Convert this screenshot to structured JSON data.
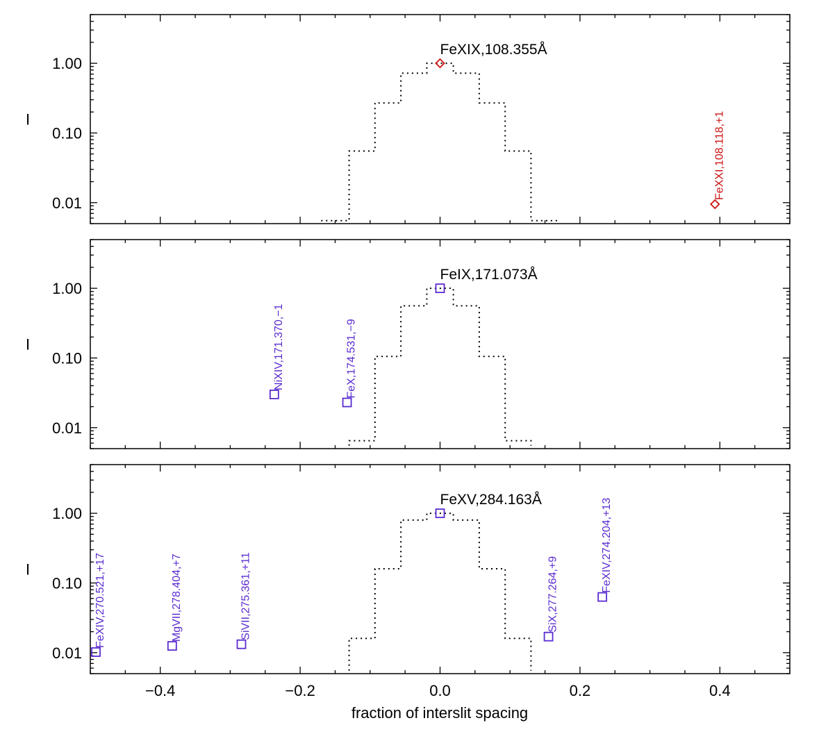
{
  "chart_data": {
    "type": "line",
    "xlabel": "fraction of interslit spacing",
    "ylabel": "I",
    "xlim": [
      -0.5,
      0.5
    ],
    "ylim": [
      0.005,
      5
    ],
    "yscale": "log",
    "x_ticks": [
      -0.4,
      -0.2,
      0.0,
      0.2,
      0.4
    ],
    "x_tick_labels": [
      "−0.4",
      "−0.2",
      "0.0",
      "0.2",
      "0.4"
    ],
    "y_ticks": [
      1.0,
      0.1,
      0.01
    ],
    "y_tick_labels": [
      "1.00",
      "0.10",
      "0.01"
    ],
    "colors": {
      "frame": "#000000",
      "profile": "#000000",
      "red": "#cc1111",
      "purple": "#5a2bd0"
    },
    "panels": [
      {
        "id": "panel-1",
        "main_label": "FeXIX,108.355Å",
        "main_marker": "diamond",
        "main_point": [
          0.0,
          1.0
        ],
        "profile": [
          [
            -0.17,
            0.0055
          ],
          [
            -0.13,
            0.0055
          ],
          [
            -0.13,
            0.055
          ],
          [
            -0.093,
            0.055
          ],
          [
            -0.093,
            0.27
          ],
          [
            -0.056,
            0.27
          ],
          [
            -0.056,
            0.72
          ],
          [
            -0.019,
            0.72
          ],
          [
            -0.019,
            1.0
          ],
          [
            0.019,
            1.0
          ],
          [
            0.019,
            0.72
          ],
          [
            0.056,
            0.72
          ],
          [
            0.056,
            0.27
          ],
          [
            0.093,
            0.27
          ],
          [
            0.093,
            0.055
          ],
          [
            0.13,
            0.055
          ],
          [
            0.13,
            0.0055
          ],
          [
            0.17,
            0.0055
          ]
        ],
        "lines": [
          {
            "label": "FeXXI,108.118,+1",
            "x": 0.393,
            "y": 0.0095,
            "marker": "diamond",
            "color": "red"
          }
        ]
      },
      {
        "id": "panel-2",
        "main_label": "FeIX,171.073Å",
        "main_marker": "square",
        "main_point": [
          0.0,
          1.0
        ],
        "profile": [
          [
            -0.13,
            0.0055
          ],
          [
            -0.13,
            0.0065
          ],
          [
            -0.093,
            0.0065
          ],
          [
            -0.093,
            0.105
          ],
          [
            -0.056,
            0.105
          ],
          [
            -0.056,
            0.56
          ],
          [
            -0.019,
            0.56
          ],
          [
            -0.019,
            1.0
          ],
          [
            0.019,
            1.0
          ],
          [
            0.019,
            0.56
          ],
          [
            0.056,
            0.56
          ],
          [
            0.056,
            0.105
          ],
          [
            0.093,
            0.105
          ],
          [
            0.093,
            0.0065
          ],
          [
            0.13,
            0.0065
          ],
          [
            0.13,
            0.0055
          ]
        ],
        "lines": [
          {
            "label": "NiXIV,171.370,−1",
            "x": -0.237,
            "y": 0.03,
            "marker": "square",
            "color": "purple"
          },
          {
            "label": "FeX,174.531,−9",
            "x": -0.133,
            "y": 0.023,
            "marker": "square",
            "color": "purple"
          }
        ]
      },
      {
        "id": "panel-3",
        "main_label": "FeXV,284.163Å",
        "main_marker": "square",
        "main_point": [
          0.0,
          1.0
        ],
        "profile": [
          [
            -0.13,
            0.0055
          ],
          [
            -0.13,
            0.016
          ],
          [
            -0.093,
            0.016
          ],
          [
            -0.093,
            0.16
          ],
          [
            -0.056,
            0.16
          ],
          [
            -0.056,
            0.8
          ],
          [
            -0.019,
            0.8
          ],
          [
            -0.019,
            1.0
          ],
          [
            0.019,
            1.0
          ],
          [
            0.019,
            0.8
          ],
          [
            0.056,
            0.8
          ],
          [
            0.056,
            0.16
          ],
          [
            0.093,
            0.16
          ],
          [
            0.093,
            0.016
          ],
          [
            0.13,
            0.016
          ],
          [
            0.13,
            0.0055
          ]
        ],
        "lines": [
          {
            "label": "FeXIV,270.521,+17",
            "x": -0.492,
            "y": 0.0102,
            "marker": "square",
            "color": "purple"
          },
          {
            "label": "MgVII,278.404,+7",
            "x": -0.383,
            "y": 0.0125,
            "marker": "square",
            "color": "purple"
          },
          {
            "label": "SiVII,275.361,+11",
            "x": -0.284,
            "y": 0.0132,
            "marker": "square",
            "color": "purple"
          },
          {
            "label": "SiX,277.264,+9",
            "x": 0.155,
            "y": 0.017,
            "marker": "square",
            "color": "purple"
          },
          {
            "label": "FeXIV,274.204,+13",
            "x": 0.232,
            "y": 0.063,
            "marker": "square",
            "color": "purple"
          }
        ]
      }
    ]
  }
}
